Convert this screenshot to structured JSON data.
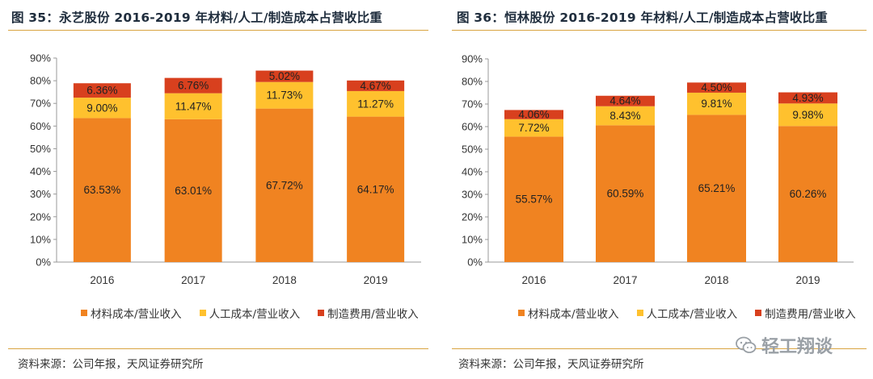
{
  "colors": {
    "material": "#F08321",
    "labor": "#FFC12E",
    "manufacturing": "#D8401E",
    "axis": "#999999",
    "accent": "#D9A441"
  },
  "panels": [
    {
      "title": "图 35：永艺股份 2016-2019 年材料/人工/制造成本占营收比重",
      "source": "资料来源：公司年报，天风证券研究所"
    },
    {
      "title": "图 36：恒林股份 2016-2019 年材料/人工/制造成本占营收比重",
      "source": "资料来源：公司年报，天风证券研究所"
    }
  ],
  "chart_data": [
    {
      "type": "bar",
      "stacked": true,
      "title": "图 35：永艺股份 2016-2019 年材料/人工/制造成本占营收比重",
      "categories": [
        "2016",
        "2017",
        "2018",
        "2019"
      ],
      "series": [
        {
          "name": "材料成本/营业收入",
          "values": [
            63.53,
            63.01,
            67.72,
            64.17
          ],
          "labels": [
            "63.53%",
            "63.01%",
            "67.72%",
            "64.17%"
          ]
        },
        {
          "name": "人工成本/营业收入",
          "values": [
            9.0,
            11.47,
            11.73,
            11.27
          ],
          "labels": [
            "9.00%",
            "11.47%",
            "11.73%",
            "11.27%"
          ]
        },
        {
          "name": "制造费用/营业收入",
          "values": [
            6.36,
            6.76,
            5.02,
            4.67
          ],
          "labels": [
            "6.36%",
            "6.76%",
            "5.02%",
            "4.67%"
          ]
        }
      ],
      "yticks": [
        "0%",
        "10%",
        "20%",
        "30%",
        "40%",
        "50%",
        "60%",
        "70%",
        "80%",
        "90%"
      ],
      "ylim": [
        0,
        90
      ],
      "grid": false,
      "legend": "bottom"
    },
    {
      "type": "bar",
      "stacked": true,
      "title": "图 36：恒林股份 2016-2019 年材料/人工/制造成本占营收比重",
      "categories": [
        "2016",
        "2017",
        "2018",
        "2019"
      ],
      "series": [
        {
          "name": "材料成本/营业收入",
          "values": [
            55.57,
            60.59,
            65.21,
            60.26
          ],
          "labels": [
            "55.57%",
            "60.59%",
            "65.21%",
            "60.26%"
          ]
        },
        {
          "name": "人工成本/营业收入",
          "values": [
            7.72,
            8.43,
            9.81,
            9.98
          ],
          "labels": [
            "7.72%",
            "8.43%",
            "9.81%",
            "9.98%"
          ]
        },
        {
          "name": "制造费用/营业收入",
          "values": [
            4.06,
            4.64,
            4.5,
            4.93
          ],
          "labels": [
            "4.06%",
            "4.64%",
            "4.50%",
            "4.93%"
          ]
        }
      ],
      "yticks": [
        "0%",
        "10%",
        "20%",
        "30%",
        "40%",
        "50%",
        "60%",
        "70%",
        "80%",
        "90%"
      ],
      "ylim": [
        0,
        90
      ],
      "grid": false,
      "legend": "bottom"
    }
  ],
  "watermark": {
    "text": "轻工翔谈",
    "icon": "wechat-icon"
  }
}
